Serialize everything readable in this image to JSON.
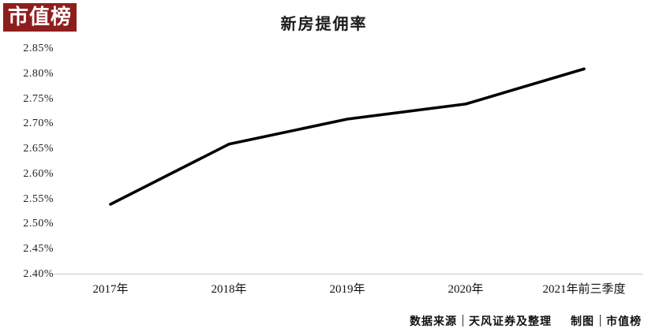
{
  "logo": {
    "text": "市值榜",
    "bg_color": "#8e1e1e",
    "text_color": "#ffffff"
  },
  "title": "新房提佣率",
  "footer": {
    "source_label": "数据来源",
    "source_value": "天风证券及整理",
    "credit_label": "制图",
    "credit_value": "市值榜"
  },
  "chart_data": {
    "type": "line",
    "title": "新房提佣率",
    "categories": [
      "2017年",
      "2018年",
      "2019年",
      "2020年",
      "2021年前三季度"
    ],
    "values": [
      2.54,
      2.66,
      2.71,
      2.74,
      2.81
    ],
    "unit": "%",
    "xlabel": "",
    "ylabel": "",
    "ylim": [
      2.4,
      2.85
    ],
    "ytick_step": 0.05,
    "ytick_labels": [
      "2.40%",
      "2.45%",
      "2.50%",
      "2.55%",
      "2.60%",
      "2.65%",
      "2.70%",
      "2.75%",
      "2.80%",
      "2.85%"
    ],
    "line_color": "#000000",
    "line_width": 3.6,
    "grid": false,
    "legend": false,
    "axis_line_color": "#c9c9c9"
  }
}
